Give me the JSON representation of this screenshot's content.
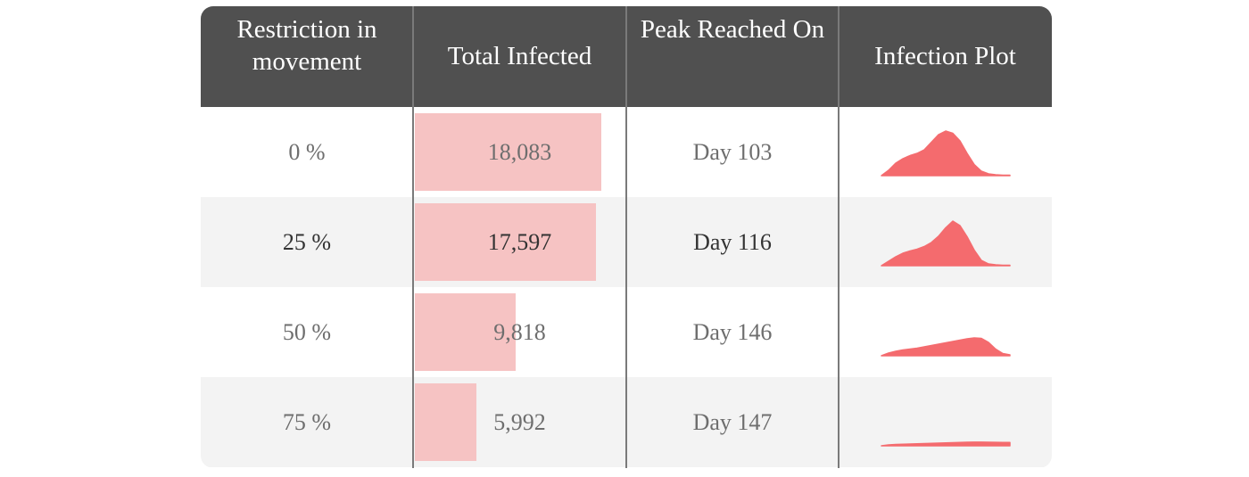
{
  "chart_data": {
    "type": "table",
    "columns": [
      "Restriction in movement",
      "Total Infected",
      "Peak Reached On",
      "Infection Plot"
    ],
    "rows": [
      {
        "restriction": "0 %",
        "total_infected_label": "18,083",
        "total_infected": 18083,
        "peak": "Day 103",
        "curve": [
          0,
          0.12,
          0.28,
          0.38,
          0.45,
          0.5,
          0.58,
          0.75,
          0.92,
          1.0,
          0.95,
          0.78,
          0.5,
          0.25,
          0.1,
          0.04,
          0.02,
          0.01,
          0.01
        ]
      },
      {
        "restriction": "25 %",
        "total_infected_label": "17,597",
        "total_infected": 17597,
        "peak": "Day 116",
        "curve": [
          0,
          0.1,
          0.2,
          0.28,
          0.33,
          0.37,
          0.43,
          0.52,
          0.66,
          0.85,
          1.0,
          0.9,
          0.65,
          0.35,
          0.12,
          0.04,
          0.02,
          0.01,
          0.01
        ]
      },
      {
        "restriction": "50 %",
        "total_infected_label": "9,818",
        "total_infected": 9818,
        "peak": "Day 146",
        "curve": [
          0,
          0.06,
          0.1,
          0.13,
          0.15,
          0.17,
          0.2,
          0.23,
          0.26,
          0.29,
          0.32,
          0.35,
          0.38,
          0.4,
          0.39,
          0.3,
          0.15,
          0.05,
          0.02
        ]
      },
      {
        "restriction": "75 %",
        "total_infected_label": "5,992",
        "total_infected": 5992,
        "peak": "Day 147",
        "curve": [
          0,
          0.02,
          0.03,
          0.035,
          0.04,
          0.045,
          0.05,
          0.055,
          0.06,
          0.065,
          0.07,
          0.075,
          0.08,
          0.082,
          0.082,
          0.08,
          0.078,
          0.076,
          0.075
        ]
      }
    ],
    "bar_max": 18083,
    "bar_color": "#f6c3c3",
    "plot_color": "#f46b6e",
    "header_bg": "#505050",
    "header_text_color": "#ffffff"
  }
}
